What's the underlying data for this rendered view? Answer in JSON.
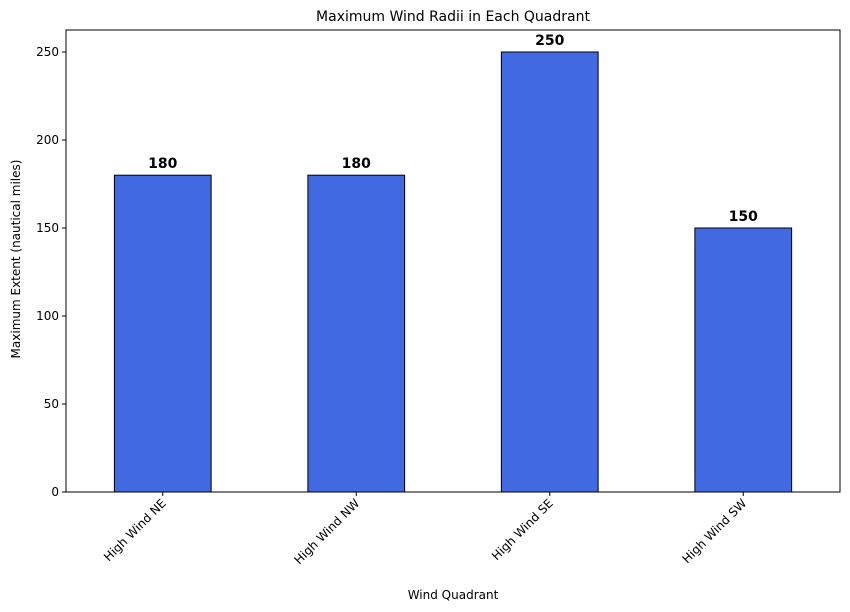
{
  "chart_data": {
    "type": "bar",
    "title": "Maximum Wind Radii in Each Quadrant",
    "xlabel": "Wind Quadrant",
    "ylabel": "Maximum Extent (nautical miles)",
    "categories": [
      "High Wind NE",
      "High Wind NW",
      "High Wind SE",
      "High Wind SW"
    ],
    "values": [
      180,
      180,
      250,
      150
    ],
    "ylim": [
      0,
      262.5
    ],
    "yticks": [
      0,
      50,
      100,
      150,
      200,
      250
    ],
    "grid": false,
    "bar_color": "#4169e1",
    "bar_edge_color": "#000000",
    "x_tick_rotation_deg": 45
  }
}
